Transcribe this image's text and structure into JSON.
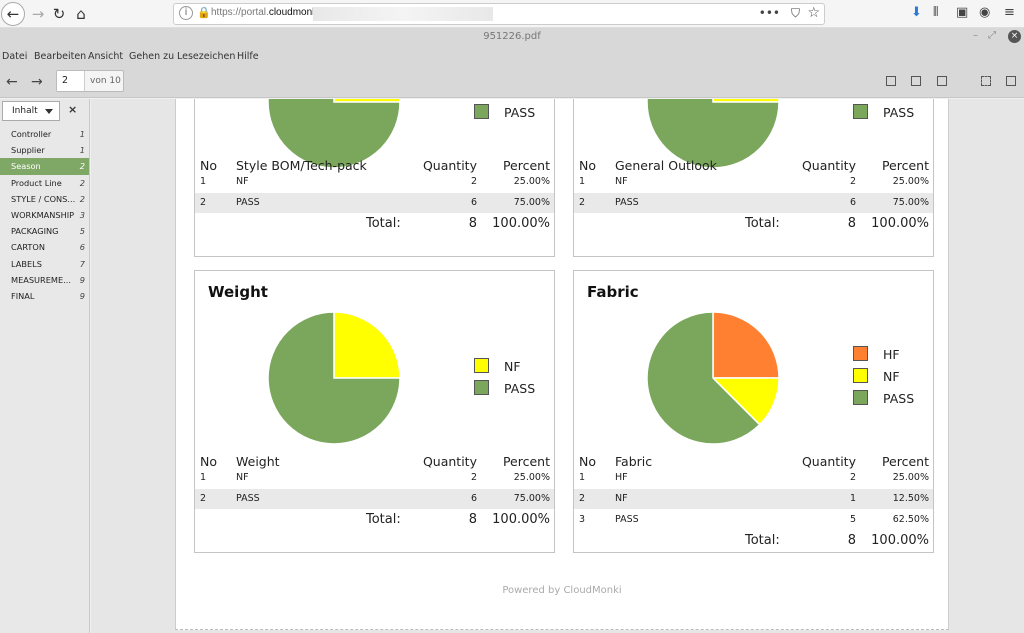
{
  "browser": {
    "url_prefix": "https://portal.",
    "url_domain": "cloudmonki.",
    "window_title": "951226.pdf"
  },
  "menu": [
    "Datei",
    "Bearbeiten",
    "Ansicht",
    "Gehen zu",
    "Lesezeichen",
    "Hilfe"
  ],
  "pdf_toolbar": {
    "page": "2",
    "of_label": "von 10"
  },
  "sidebar": {
    "selector_label": "Inhalt",
    "close_label": "×",
    "items": [
      {
        "label": "Controller",
        "page": "1"
      },
      {
        "label": "Supplier",
        "page": "1"
      },
      {
        "label": "Season",
        "page": "2"
      },
      {
        "label": "Product Line",
        "page": "2"
      },
      {
        "label": "STYLE / CONS...",
        "page": "2"
      },
      {
        "label": "WORKMANSHIP",
        "page": "3"
      },
      {
        "label": "PACKAGING",
        "page": "5"
      },
      {
        "label": "CARTON",
        "page": "6"
      },
      {
        "label": "LABELS",
        "page": "7"
      },
      {
        "label": "MEASUREME...",
        "page": "9"
      },
      {
        "label": "FINAL",
        "page": "9"
      }
    ],
    "active_index": 2
  },
  "colors": {
    "pass": "#7aa75c",
    "nf": "#ffff00",
    "hf": "#ff8030",
    "accent": "#7fa866"
  },
  "panels": {
    "style": {
      "title": "",
      "legend": [
        {
          "label": "PASS",
          "color": "#7aa75c"
        }
      ],
      "headers": {
        "no": "No",
        "name": "Style BOM/Tech-pack",
        "qty": "Quantity",
        "pct": "Percent"
      },
      "rows": [
        {
          "no": "1",
          "name": "NF",
          "qty": "2",
          "pct": "25.00%"
        },
        {
          "no": "2",
          "name": "PASS",
          "qty": "6",
          "pct": "75.00%"
        }
      ],
      "total_label": "Total:",
      "total_qty": "8",
      "total_pct": "100.00%"
    },
    "outlook": {
      "title": "",
      "legend": [
        {
          "label": "PASS",
          "color": "#7aa75c"
        }
      ],
      "headers": {
        "no": "No",
        "name": "General Outlook",
        "qty": "Quantity",
        "pct": "Percent"
      },
      "rows": [
        {
          "no": "1",
          "name": "NF",
          "qty": "2",
          "pct": "25.00%"
        },
        {
          "no": "2",
          "name": "PASS",
          "qty": "6",
          "pct": "75.00%"
        }
      ],
      "total_label": "Total:",
      "total_qty": "8",
      "total_pct": "100.00%"
    },
    "weight": {
      "title": "Weight",
      "legend": [
        {
          "label": "NF",
          "color": "#ffff00"
        },
        {
          "label": "PASS",
          "color": "#7aa75c"
        }
      ],
      "headers": {
        "no": "No",
        "name": "Weight",
        "qty": "Quantity",
        "pct": "Percent"
      },
      "rows": [
        {
          "no": "1",
          "name": "NF",
          "qty": "2",
          "pct": "25.00%"
        },
        {
          "no": "2",
          "name": "PASS",
          "qty": "6",
          "pct": "75.00%"
        }
      ],
      "total_label": "Total:",
      "total_qty": "8",
      "total_pct": "100.00%"
    },
    "fabric": {
      "title": "Fabric",
      "legend": [
        {
          "label": "HF",
          "color": "#ff8030"
        },
        {
          "label": "NF",
          "color": "#ffff00"
        },
        {
          "label": "PASS",
          "color": "#7aa75c"
        }
      ],
      "headers": {
        "no": "No",
        "name": "Fabric",
        "qty": "Quantity",
        "pct": "Percent"
      },
      "rows": [
        {
          "no": "1",
          "name": "HF",
          "qty": "2",
          "pct": "25.00%"
        },
        {
          "no": "2",
          "name": "NF",
          "qty": "1",
          "pct": "12.50%"
        },
        {
          "no": "3",
          "name": "PASS",
          "qty": "5",
          "pct": "62.50%"
        }
      ],
      "total_label": "Total:",
      "total_qty": "8",
      "total_pct": "100.00%"
    }
  },
  "footer": "Powered by CloudMonki",
  "chart_data": [
    {
      "type": "pie",
      "categories": [
        "NF",
        "PASS"
      ],
      "values": [
        2,
        6
      ],
      "colors": [
        "#ffff00",
        "#7aa75c"
      ]
    },
    {
      "type": "pie",
      "categories": [
        "NF",
        "PASS"
      ],
      "values": [
        2,
        6
      ],
      "colors": [
        "#ffff00",
        "#7aa75c"
      ]
    },
    {
      "type": "pie",
      "title": "Weight",
      "categories": [
        "NF",
        "PASS"
      ],
      "values": [
        2,
        6
      ],
      "colors": [
        "#ffff00",
        "#7aa75c"
      ]
    },
    {
      "type": "pie",
      "title": "Fabric",
      "categories": [
        "HF",
        "NF",
        "PASS"
      ],
      "values": [
        2,
        1,
        5
      ],
      "colors": [
        "#ff8030",
        "#ffff00",
        "#7aa75c"
      ]
    }
  ]
}
